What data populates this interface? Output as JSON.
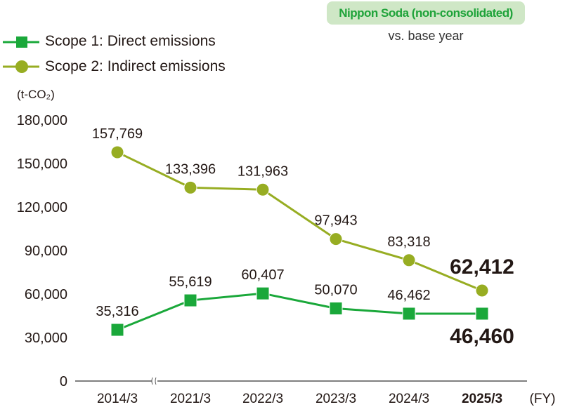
{
  "chart_data": {
    "type": "line",
    "categories": [
      "2014/3",
      "2021/3",
      "2022/3",
      "2023/3",
      "2024/3",
      "2025/3"
    ],
    "series": [
      {
        "name": "Scope 1: Direct emissions",
        "marker": "square",
        "color": "#1aa83a",
        "values": [
          35316,
          55619,
          60407,
          50070,
          46462,
          46460
        ],
        "labels": [
          "35,316",
          "55,619",
          "60,407",
          "50,070",
          "46,462",
          "46,460"
        ]
      },
      {
        "name": "Scope 2: Indirect emissions",
        "marker": "circle",
        "color": "#97ad22",
        "values": [
          157769,
          133396,
          131963,
          97943,
          83318,
          62412
        ],
        "labels": [
          "157,769",
          "133,396",
          "131,963",
          "97,943",
          "83,318",
          "62,412"
        ]
      }
    ],
    "ylabel": "(t-CO₂)",
    "xlabel": "(FY)",
    "ylim": [
      0,
      180000
    ],
    "yticks": [
      "0",
      "30,000",
      "60,000",
      "90,000",
      "120,000",
      "150,000",
      "180,000"
    ],
    "grid": false,
    "legend": "top-left",
    "axis_break_after": "2014/3"
  },
  "badge": "Nippon Soda (non-consolidated)",
  "note": "vs. base year"
}
